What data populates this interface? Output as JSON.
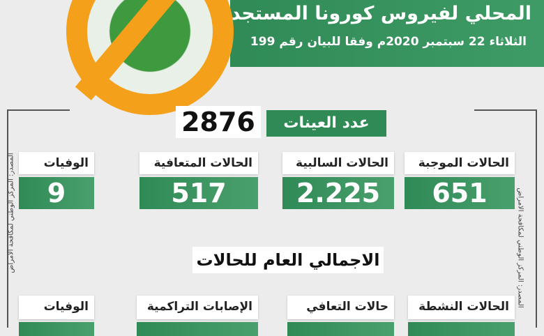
{
  "header": {
    "title": "المحلي لفيروس كورونا المستجد",
    "subtitle": "الثلاثاء 22 سبتمبر 2020م وفقا للبيان رقم 199"
  },
  "samples": {
    "label": "عدد العينات",
    "value": "2876"
  },
  "daily": [
    {
      "label": "الحالات الموجبة",
      "value": "651"
    },
    {
      "label": "الحالات السالبية",
      "value": "2.225"
    },
    {
      "label": "الحالات المتعافية",
      "value": "517"
    },
    {
      "label": "الوفيات",
      "value": "9"
    }
  ],
  "total": {
    "title": "الاجمالي العام للحالات",
    "items": [
      {
        "label": "الحالات النشطة"
      },
      {
        "label": "حالات التعافي"
      },
      {
        "label": "الإصابات التراكمية"
      },
      {
        "label": "الوفيات"
      }
    ]
  },
  "source": "المصدر: المركز الوطني لمكافحة الامراض",
  "colors": {
    "green": "#2f8a56",
    "orange": "#f5a01a"
  }
}
